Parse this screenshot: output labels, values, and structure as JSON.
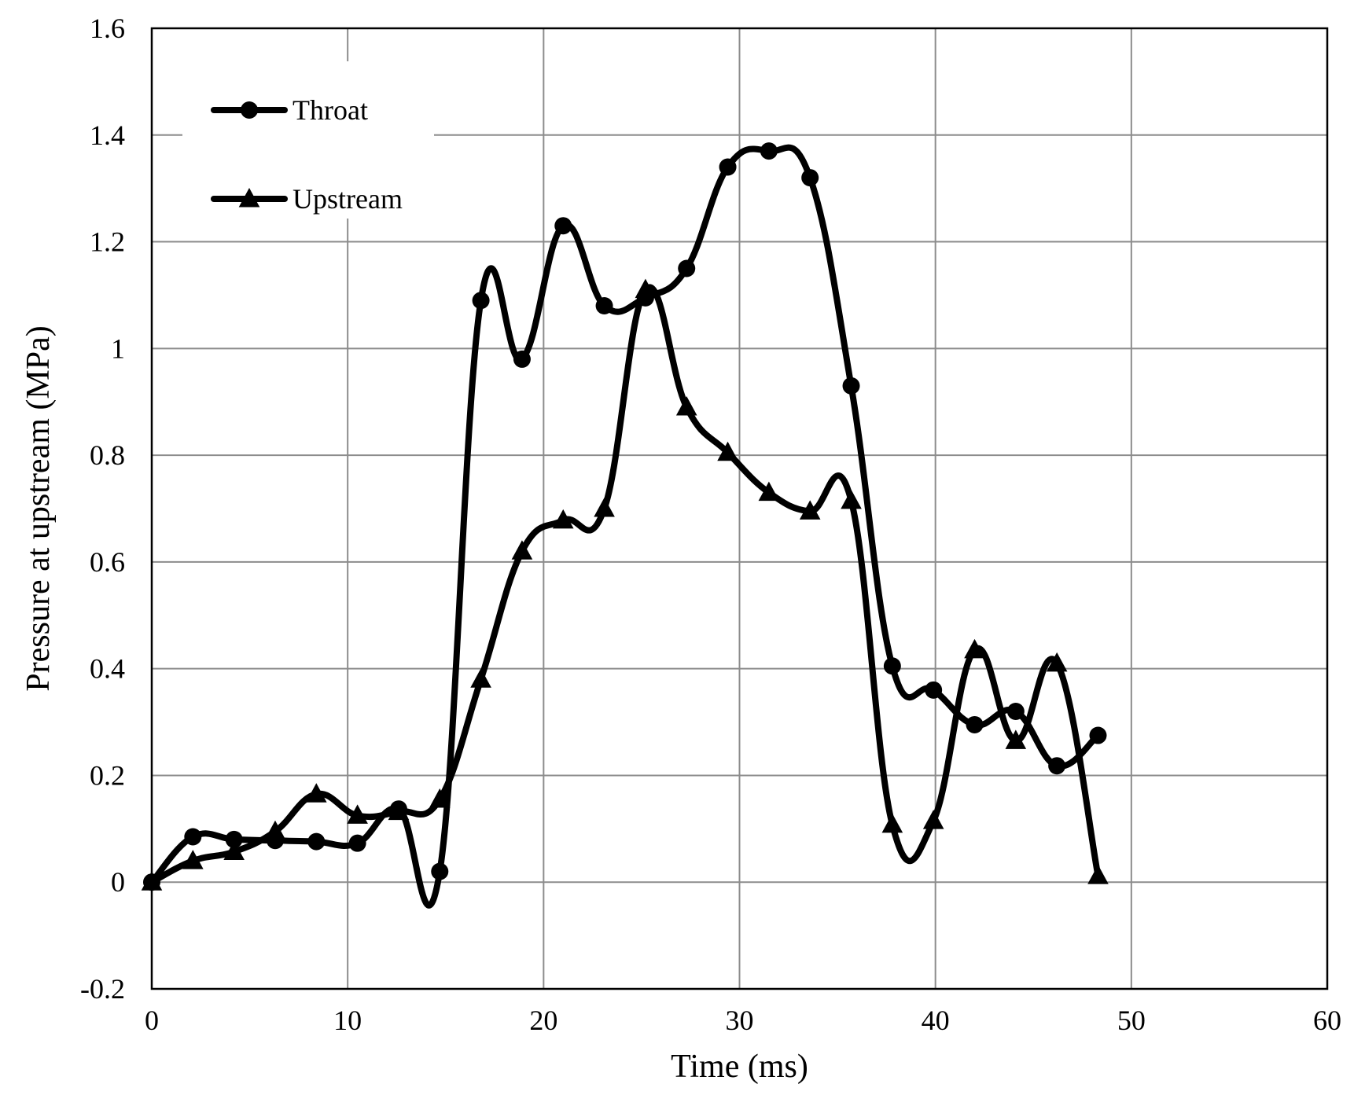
{
  "chart_data": {
    "type": "line",
    "title": "",
    "xlabel": "Time (ms)",
    "ylabel": "Pressure at upstream (MPa)",
    "xlim": [
      0,
      60
    ],
    "ylim": [
      -0.2,
      1.6
    ],
    "x_ticks": [
      0,
      10,
      20,
      30,
      40,
      50,
      60
    ],
    "y_ticks": [
      -0.2,
      0,
      0.2,
      0.4,
      0.6,
      0.8,
      1,
      1.2,
      1.4,
      1.6
    ],
    "x_tick_labels": [
      "0",
      "10",
      "20",
      "30",
      "40",
      "50",
      "60"
    ],
    "y_tick_labels": [
      "-0.2",
      "0",
      "0.2",
      "0.4",
      "0.6",
      "0.8",
      "1",
      "1.2",
      "1.4",
      "1.6"
    ],
    "grid": true,
    "smooth": true,
    "legend_position": "top-left",
    "series": [
      {
        "name": "Throat",
        "marker": "circle",
        "color": "#000000",
        "x": [
          0,
          2.1,
          4.2,
          6.3,
          8.4,
          10.5,
          12.6,
          14.7,
          16.8,
          18.9,
          21.0,
          23.1,
          25.2,
          27.3,
          29.4,
          31.5,
          33.6,
          35.7,
          37.8,
          39.9,
          42.0,
          44.1,
          46.2,
          48.3
        ],
        "y": [
          0,
          0.085,
          0.08,
          0.078,
          0.076,
          0.073,
          0.137,
          0.02,
          1.09,
          0.98,
          1.23,
          1.08,
          1.095,
          1.15,
          1.34,
          1.37,
          1.32,
          0.93,
          0.405,
          0.36,
          0.295,
          0.32,
          0.218,
          0.275
        ]
      },
      {
        "name": "Upstream",
        "marker": "triangle",
        "color": "#000000",
        "x": [
          0,
          2.1,
          4.2,
          6.3,
          8.4,
          10.5,
          12.6,
          14.7,
          16.8,
          18.9,
          21.0,
          23.1,
          25.2,
          27.3,
          29.4,
          31.5,
          33.6,
          35.7,
          37.8,
          39.9,
          42.0,
          44.1,
          46.2,
          48.3
        ],
        "y": [
          0,
          0.04,
          0.057,
          0.095,
          0.165,
          0.125,
          0.132,
          0.155,
          0.38,
          0.62,
          0.678,
          0.7,
          1.11,
          0.89,
          0.805,
          0.73,
          0.695,
          0.715,
          0.108,
          0.115,
          0.435,
          0.265,
          0.41,
          0.012
        ]
      }
    ]
  }
}
